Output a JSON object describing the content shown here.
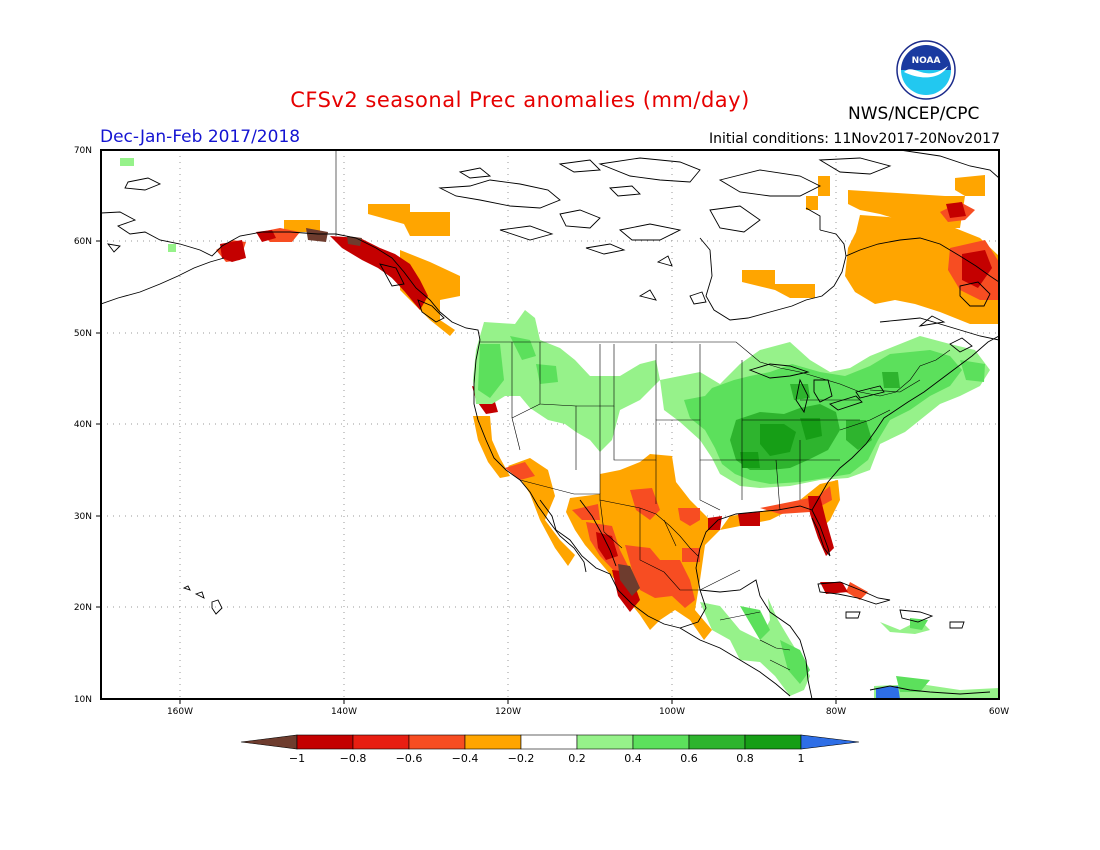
{
  "header": {
    "title": "CFSv2 seasonal Prec anomalies (mm/day)",
    "subtitle": "Dec-Jan-Feb 2017/2018",
    "initial_conditions": "Initial conditions: 11Nov2017-20Nov2017",
    "agency": "NWS/NCEP/CPC",
    "logo_text": "NOAA",
    "title_color": "#e60000",
    "subtitle_color": "#1414d2"
  },
  "map": {
    "lon_labels": [
      "160W",
      "140W",
      "120W",
      "100W",
      "80W",
      "60W"
    ],
    "lat_labels": [
      "70N",
      "60N",
      "50N",
      "40N",
      "30N",
      "20N",
      "10N"
    ],
    "grid": true
  },
  "colorbar": {
    "labels": [
      "−1",
      "−0.8",
      "−0.6",
      "−0.4",
      "−0.2",
      "0.2",
      "0.4",
      "0.6",
      "0.8",
      "1"
    ],
    "colors": [
      "#6e3c2e",
      "#c40000",
      "#e81e12",
      "#f74d22",
      "#ffa500",
      "#ffffff",
      "#96f28a",
      "#5ce05c",
      "#2eb42e",
      "#169e16",
      "#2e6ee6"
    ]
  }
}
